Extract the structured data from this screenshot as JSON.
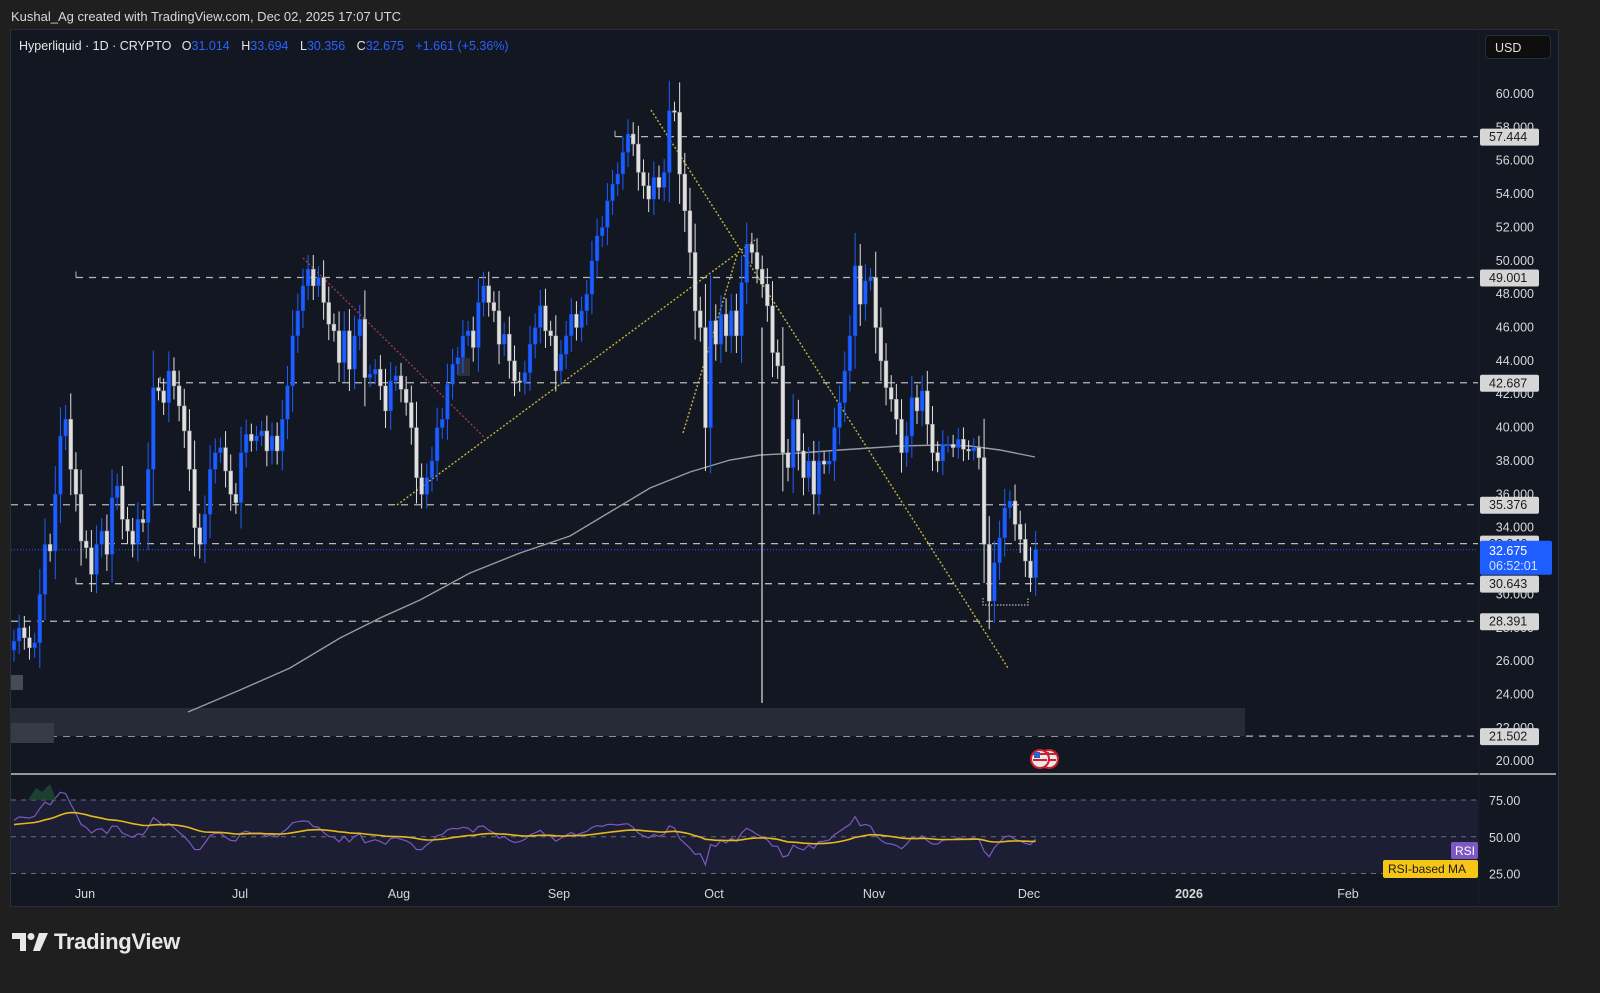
{
  "header": {
    "credit": "Kushal_Ag created with TradingView.com, Dec 02, 2025 17:07 UTC"
  },
  "legend": {
    "symbol": "Hyperliquid · 1D · CRYPTO",
    "o_label": "O",
    "o_value": "31.014",
    "h_label": "H",
    "h_value": "33.694",
    "l_label": "L",
    "l_value": "30.356",
    "c_label": "C",
    "c_value": "32.675",
    "change": "+1.661 (+5.36%)"
  },
  "currency_button": "USD",
  "price_axis": {
    "ticks": [
      "60.000",
      "58.000",
      "56.000",
      "54.000",
      "52.000",
      "50.000",
      "48.000",
      "46.000",
      "44.000",
      "42.000",
      "40.000",
      "38.000",
      "36.000",
      "34.000",
      "32.000",
      "30.000",
      "28.000",
      "26.000",
      "24.000",
      "22.000",
      "20.000"
    ],
    "level_labels": [
      "57.444",
      "49.001",
      "42.687",
      "35.376",
      "33.046",
      "30.643",
      "28.391",
      "21.502"
    ],
    "last_price": "32.675",
    "countdown": "06:52:01"
  },
  "rsi_axis": {
    "ticks": [
      "75.00",
      "50.00",
      "25.00"
    ],
    "rsi_tag": "RSI",
    "ma_tag": "RSI-based MA"
  },
  "time_axis": {
    "labels": [
      "Jun",
      "Jul",
      "Aug",
      "Sep",
      "Oct",
      "Nov",
      "Dec",
      "2026",
      "Feb"
    ]
  },
  "colors": {
    "background": "#121722",
    "bull": "#1e5eff",
    "bear": "#e0e0e0",
    "level_line": "#b8b8b8",
    "ma_line": "#9a9aa0",
    "trend_yellow": "#c9b43a",
    "trend_red": "#a23a48",
    "rsi": "#7e57c2",
    "rsi_ma": "#e5b820",
    "last_price_bg": "#1e5eff"
  },
  "branding": "TradingView",
  "chart_data": {
    "type": "candlestick",
    "title": "Hyperliquid · 1D · CRYPTO",
    "xlabel": "",
    "ylabel": "USD",
    "ylim": [
      20,
      60
    ],
    "x_start": "2025-05-19",
    "x_end": "2025-12-02",
    "closes": [
      27.2,
      28.0,
      27.4,
      26.8,
      27.1,
      30.0,
      33.0,
      32.6,
      36.0,
      39.5,
      40.5,
      37.5,
      36.0,
      33.2,
      32.8,
      31.2,
      33.0,
      33.8,
      32.4,
      35.8,
      36.5,
      34.5,
      33.8,
      33.0,
      34.5,
      34.3,
      37.5,
      42.4,
      42.2,
      41.5,
      43.4,
      42.5,
      41.3,
      39.8,
      37.5,
      34.0,
      33.0,
      34.8,
      37.5,
      38.5,
      38.8,
      37.4,
      36.0,
      35.5,
      38.5,
      39.6,
      39.2,
      39.5,
      39.8,
      38.6,
      39.5,
      38.6,
      40.5,
      42.5,
      45.5,
      47.0,
      48.5,
      49.5,
      48.5,
      49.0,
      47.5,
      46.2,
      45.8,
      43.9,
      45.8,
      43.5,
      45.5,
      46.5,
      43.0,
      43.2,
      43.5,
      42.5,
      41.0,
      42.8,
      43.1,
      42.3,
      41.5,
      40.0,
      37.0,
      36.0,
      37.0,
      38.0,
      40.0,
      40.5,
      42.6,
      43.8,
      44.2,
      45.5,
      45.8,
      44.8,
      47.5,
      48.5,
      47.5,
      47.0,
      45.0,
      45.6,
      44.0,
      42.8,
      42.7,
      43.3,
      45.0,
      46.0,
      47.3,
      45.8,
      45.5,
      43.4,
      44.4,
      45.5,
      46.8,
      46.0,
      47.0,
      48.0,
      50.0,
      51.5,
      52.0,
      53.6,
      54.6,
      55.2,
      56.5,
      57.6,
      57.0,
      55.3,
      54.5,
      53.7,
      55.0,
      54.4,
      55.3,
      59.0,
      58.9,
      55.2,
      53.0,
      50.5,
      47.0,
      46.0,
      40.0,
      46.4,
      45.0,
      46.8,
      45.5,
      47.0,
      45.5,
      48.7,
      51.0,
      50.5,
      49.5,
      48.6,
      47.3,
      44.5,
      43.7,
      38.5,
      37.6,
      40.5,
      38.6,
      37.0,
      38.0,
      36.0,
      38.0,
      37.8,
      38.0,
      40.0,
      41.5,
      43.4,
      45.5,
      49.7,
      47.4,
      48.8,
      49.0,
      46.0,
      44.0,
      42.4,
      41.7,
      40.5,
      38.5,
      39.5,
      41.8,
      41.0,
      42.2,
      40.2,
      38.5,
      38.0,
      39.0,
      39.0,
      38.8,
      39.3,
      38.7,
      38.6,
      38.8,
      38.2,
      33.0,
      29.6,
      31.9,
      33.4,
      35.2,
      35.6,
      34.2,
      33.3,
      32.0,
      31.0,
      32.7
    ],
    "levels": [
      57.444,
      49.001,
      42.687,
      35.376,
      33.046,
      30.643,
      28.391,
      21.502
    ],
    "rsi_ylim": [
      20,
      90
    ],
    "rsi_bands": [
      75,
      50,
      25
    ],
    "rsi_last": 39,
    "rsi_ma_last": 42
  }
}
